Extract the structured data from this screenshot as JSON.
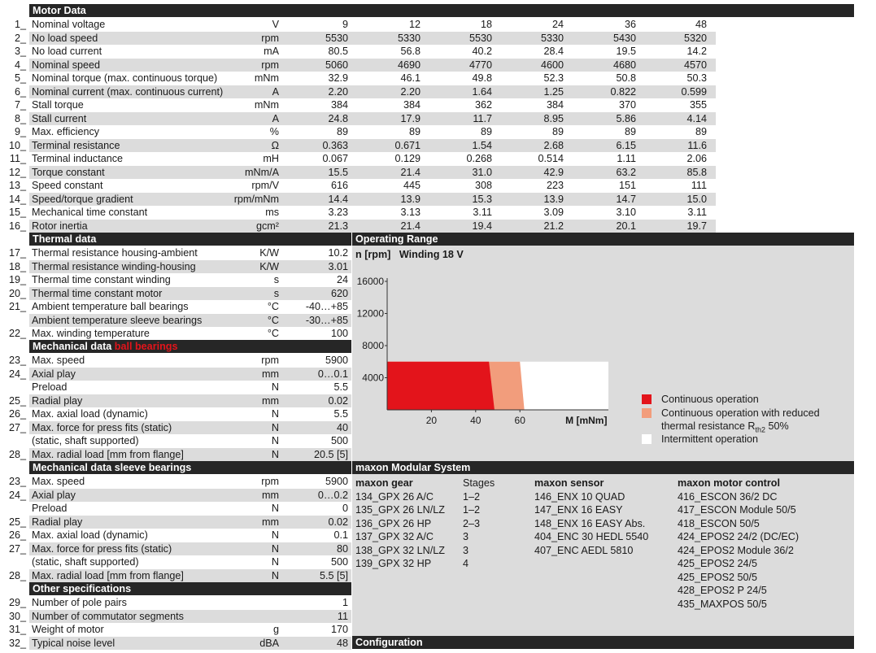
{
  "motor_data": {
    "title": "Motor Data",
    "rows": [
      {
        "num": "1_",
        "label": "Nominal voltage",
        "unit": "V",
        "values": [
          "9",
          "12",
          "18",
          "24",
          "36",
          "48"
        ]
      },
      {
        "num": "2_",
        "label": "No load speed",
        "unit": "rpm",
        "values": [
          "5530",
          "5330",
          "5530",
          "5330",
          "5430",
          "5320"
        ]
      },
      {
        "num": "3_",
        "label": "No load current",
        "unit": "mA",
        "values": [
          "80.5",
          "56.8",
          "40.2",
          "28.4",
          "19.5",
          "14.2"
        ]
      },
      {
        "num": "4_",
        "label": "Nominal speed",
        "unit": "rpm",
        "values": [
          "5060",
          "4690",
          "4770",
          "4600",
          "4680",
          "4570"
        ]
      },
      {
        "num": "5_",
        "label": "Nominal torque (max. continuous torque)",
        "unit": "mNm",
        "values": [
          "32.9",
          "46.1",
          "49.8",
          "52.3",
          "50.8",
          "50.3"
        ]
      },
      {
        "num": "6_",
        "label": "Nominal current (max. continuous current)",
        "unit": "A",
        "values": [
          "2.20",
          "2.20",
          "1.64",
          "1.25",
          "0.822",
          "0.599"
        ]
      },
      {
        "num": "7_",
        "label": "Stall torque",
        "unit": "mNm",
        "values": [
          "384",
          "384",
          "362",
          "384",
          "370",
          "355"
        ]
      },
      {
        "num": "8_",
        "label": "Stall current",
        "unit": "A",
        "values": [
          "24.8",
          "17.9",
          "11.7",
          "8.95",
          "5.86",
          "4.14"
        ]
      },
      {
        "num": "9_",
        "label": "Max. efficiency",
        "unit": "%",
        "values": [
          "89",
          "89",
          "89",
          "89",
          "89",
          "89"
        ]
      },
      {
        "num": "10_",
        "label": "Terminal resistance",
        "unit": "Ω",
        "values": [
          "0.363",
          "0.671",
          "1.54",
          "2.68",
          "6.15",
          "11.6"
        ]
      },
      {
        "num": "11_",
        "label": "Terminal inductance",
        "unit": "mH",
        "values": [
          "0.067",
          "0.129",
          "0.268",
          "0.514",
          "1.11",
          "2.06"
        ]
      },
      {
        "num": "12_",
        "label": "Torque constant",
        "unit": "mNm/A",
        "values": [
          "15.5",
          "21.4",
          "31.0",
          "42.9",
          "63.2",
          "85.8"
        ]
      },
      {
        "num": "13_",
        "label": "Speed constant",
        "unit": "rpm/V",
        "values": [
          "616",
          "445",
          "308",
          "223",
          "151",
          "111"
        ]
      },
      {
        "num": "14_",
        "label": "Speed/torque gradient",
        "unit": "rpm/mNm",
        "values": [
          "14.4",
          "13.9",
          "15.3",
          "13.9",
          "14.7",
          "15.0"
        ]
      },
      {
        "num": "15_",
        "label": "Mechanical time constant",
        "unit": "ms",
        "values": [
          "3.23",
          "3.13",
          "3.11",
          "3.09",
          "3.10",
          "3.11"
        ]
      },
      {
        "num": "16_",
        "label": "Rotor inertia",
        "unit": "gcm²",
        "values": [
          "21.3",
          "21.4",
          "19.4",
          "21.2",
          "20.1",
          "19.7"
        ]
      }
    ]
  },
  "thermal": {
    "title": "Thermal data",
    "rows": [
      {
        "num": "17_",
        "label": "Thermal resistance housing-ambient",
        "unit": "K/W",
        "value": "10.2"
      },
      {
        "num": "18_",
        "label": "Thermal resistance winding-housing",
        "unit": "K/W",
        "value": "3.01"
      },
      {
        "num": "19_",
        "label": "Thermal time constant winding",
        "unit": "s",
        "value": "24"
      },
      {
        "num": "20_",
        "label": "Thermal time constant motor",
        "unit": "s",
        "value": "620"
      },
      {
        "num": "21_",
        "label": "Ambient temperature ball bearings",
        "unit": "°C",
        "value": "-40…+85"
      },
      {
        "num": "",
        "label": "Ambient temperature sleeve bearings",
        "unit": "°C",
        "value": "-30…+85"
      },
      {
        "num": "22_",
        "label": "Max. winding temperature",
        "unit": "°C",
        "value": "100"
      }
    ]
  },
  "mech_ball": {
    "title": "Mechanical data",
    "title_red": "ball bearings",
    "rows": [
      {
        "num": "23_",
        "label": "Max. speed",
        "unit": "rpm",
        "value": "5900"
      },
      {
        "num": "24_",
        "label": "Axial play",
        "unit": "mm",
        "value": "0…0.1"
      },
      {
        "num": "",
        "label": "Preload",
        "unit": "N",
        "value": "5.5"
      },
      {
        "num": "25_",
        "label": "Radial play",
        "unit": "mm",
        "value": "0.02"
      },
      {
        "num": "26_",
        "label": "Max. axial load (dynamic)",
        "unit": "N",
        "value": "5.5"
      },
      {
        "num": "27_",
        "label": "Max. force for press fits (static)",
        "unit": "N",
        "value": "40"
      },
      {
        "num": "",
        "label": "(static, shaft supported)",
        "unit": "N",
        "value": "500"
      },
      {
        "num": "28_",
        "label": "Max. radial load [mm from flange]",
        "unit": "N",
        "value": "20.5 [5]"
      }
    ]
  },
  "mech_sleeve": {
    "title": "Mechanical data sleeve bearings",
    "rows": [
      {
        "num": "23_",
        "label": "Max. speed",
        "unit": "rpm",
        "value": "5900"
      },
      {
        "num": "24_",
        "label": "Axial play",
        "unit": "mm",
        "value": "0…0.2"
      },
      {
        "num": "",
        "label": "Preload",
        "unit": "N",
        "value": "0"
      },
      {
        "num": "25_",
        "label": "Radial play",
        "unit": "mm",
        "value": "0.02"
      },
      {
        "num": "26_",
        "label": "Max. axial load (dynamic)",
        "unit": "N",
        "value": "0.1"
      },
      {
        "num": "27_",
        "label": "Max. force for press fits (static)",
        "unit": "N",
        "value": "80"
      },
      {
        "num": "",
        "label": "(static, shaft supported)",
        "unit": "N",
        "value": "500"
      },
      {
        "num": "28_",
        "label": "Max. radial load [mm from flange]",
        "unit": "N",
        "value": "5.5 [5]"
      }
    ]
  },
  "other": {
    "title": "Other specifications",
    "rows": [
      {
        "num": "29_",
        "label": "Number of pole pairs",
        "unit": "",
        "value": "1"
      },
      {
        "num": "30_",
        "label": "Number of commutator segments",
        "unit": "",
        "value": "11"
      },
      {
        "num": "31_",
        "label": "Weight of motor",
        "unit": "g",
        "value": "170"
      },
      {
        "num": "32_",
        "label": "Typical noise level",
        "unit": "dBA",
        "value": "48"
      }
    ]
  },
  "operating_range": {
    "title": "Operating Range",
    "y_label": "n [rpm]",
    "winding": "Winding 18 V",
    "x_label": "M [mNm]",
    "legend": {
      "continuous": "Continuous operation",
      "reduced_1": "Continuous operation with reduced",
      "reduced_2": "thermal resistance R",
      "reduced_sub": "th2",
      "reduced_3": " 50%",
      "intermittent": "Intermittent operation"
    },
    "colors": {
      "continuous": "#e3141b",
      "reduced": "#f29d7c",
      "intermittent": "#ffffff"
    }
  },
  "chart_data": {
    "type": "area",
    "title": "Operating Range",
    "xlabel": "M [mNm]",
    "ylabel": "n [rpm]",
    "x_ticks": [
      20,
      40,
      60
    ],
    "y_ticks": [
      4000,
      8000,
      12000,
      16000
    ],
    "xlim": [
      0,
      100
    ],
    "ylim": [
      0,
      16000
    ],
    "regions": [
      {
        "name": "Continuous operation",
        "speed_limit": 6000,
        "torque_at_max_speed": 46,
        "torque_at_zero_speed": 48.5
      },
      {
        "name": "Continuous operation with reduced thermal resistance Rth2 50%",
        "speed_limit": 6000,
        "torque_at_max_speed": 60,
        "torque_at_zero_speed": 62
      },
      {
        "name": "Intermittent operation",
        "speed_limit": 6000,
        "torque_max": 100
      }
    ]
  },
  "modular": {
    "title": "maxon Modular System",
    "gear_header": "maxon gear",
    "stages_header": "Stages",
    "sensor_header": "maxon sensor",
    "control_header": "maxon motor control",
    "gears": [
      {
        "name": "134_GPX 26 A/C",
        "stages": "1–2"
      },
      {
        "name": "135_GPX 26 LN/LZ",
        "stages": "1–2"
      },
      {
        "name": "136_GPX 26 HP",
        "stages": "2–3"
      },
      {
        "name": "137_GPX 32 A/C",
        "stages": "3"
      },
      {
        "name": "138_GPX 32 LN/LZ",
        "stages": "3"
      },
      {
        "name": "139_GPX 32 HP",
        "stages": "4"
      }
    ],
    "sensors": [
      "146_ENX 10 QUAD",
      "147_ENX 16 EASY",
      "148_ENX 16 EASY Abs.",
      "404_ENC 30 HEDL 5540",
      "407_ENC AEDL 5810"
    ],
    "controls": [
      "416_ESCON 36/2 DC",
      "417_ESCON Module 50/5",
      "418_ESCON 50/5",
      "424_EPOS2 24/2 (DC/EC)",
      "424_EPOS2 Module 36/2",
      "425_EPOS2 24/5",
      "425_EPOS2 50/5",
      "428_EPOS2 P 24/5",
      "435_MAXPOS 50/5"
    ]
  },
  "configuration": {
    "title": "Configuration"
  }
}
